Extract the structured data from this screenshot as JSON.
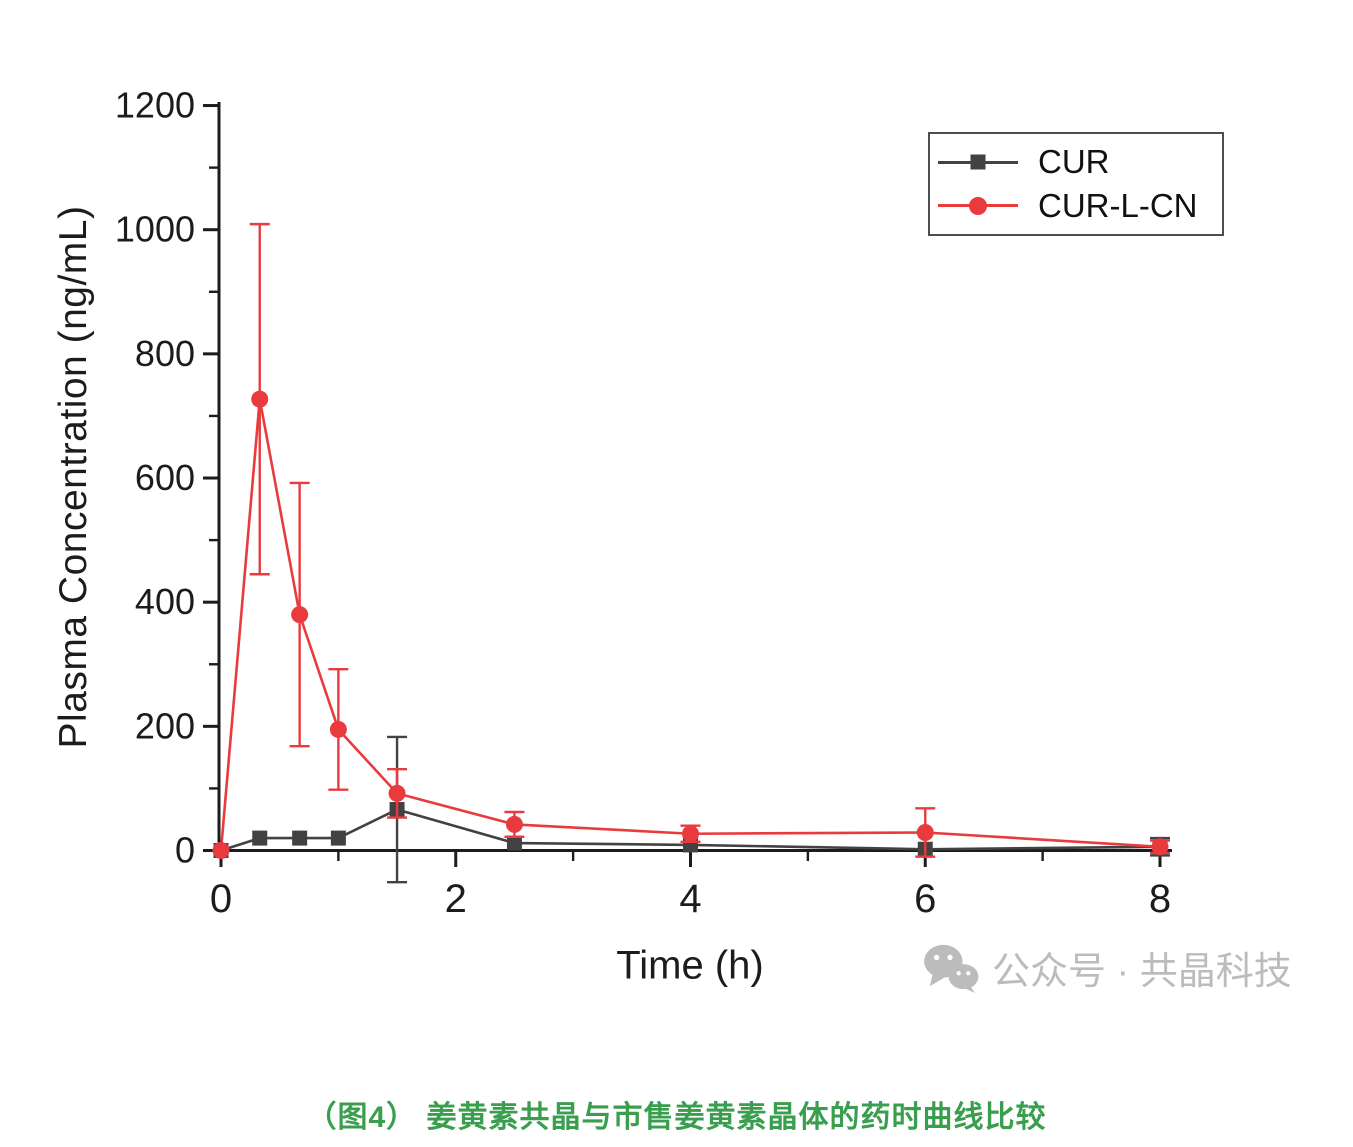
{
  "figure": {
    "caption": "（图4） 姜黄素共晶与市售姜黄素晶体的药时曲线比较",
    "caption_color": "#3a9e4f",
    "watermark": {
      "icon": "wechat-icon",
      "text": "公众号 · 共晶科技",
      "color": "#bcbcbc"
    },
    "legend": [
      {
        "label": "CUR",
        "marker": "square"
      },
      {
        "label": "CUR-L-CN",
        "marker": "circle"
      }
    ]
  },
  "chart_data": {
    "type": "line",
    "title": "",
    "xlabel": "Time (h)",
    "ylabel": "Plasma Concentration (ng/mL)",
    "xlim": [
      0,
      8
    ],
    "ylim": [
      0,
      1200
    ],
    "xticks_major": [
      0,
      2,
      4,
      6,
      8
    ],
    "xticks_minor": [
      1,
      3,
      5,
      7
    ],
    "yticks_major": [
      0,
      200,
      400,
      600,
      800,
      1000,
      1200
    ],
    "yticks_minor": [
      100,
      300,
      500,
      700,
      900,
      1100
    ],
    "grid": false,
    "legend_position": "top-right",
    "x_hours": [
      0,
      0.33,
      0.67,
      1,
      1.5,
      2.5,
      4,
      6,
      8
    ],
    "series": [
      {
        "name": "CUR",
        "color": "#424242",
        "marker": "square",
        "values": [
          0,
          20,
          20,
          20,
          66,
          12,
          9,
          2,
          6
        ],
        "errors": [
          0,
          0,
          0,
          0,
          117,
          0,
          0,
          0,
          14
        ]
      },
      {
        "name": "CUR-L-CN",
        "color": "#e93b3d",
        "marker": "circle",
        "values": [
          0,
          727,
          380,
          195,
          92,
          42,
          27,
          29,
          6
        ],
        "errors": [
          0,
          282,
          212,
          97,
          39,
          20,
          13,
          39,
          10
        ]
      }
    ]
  }
}
